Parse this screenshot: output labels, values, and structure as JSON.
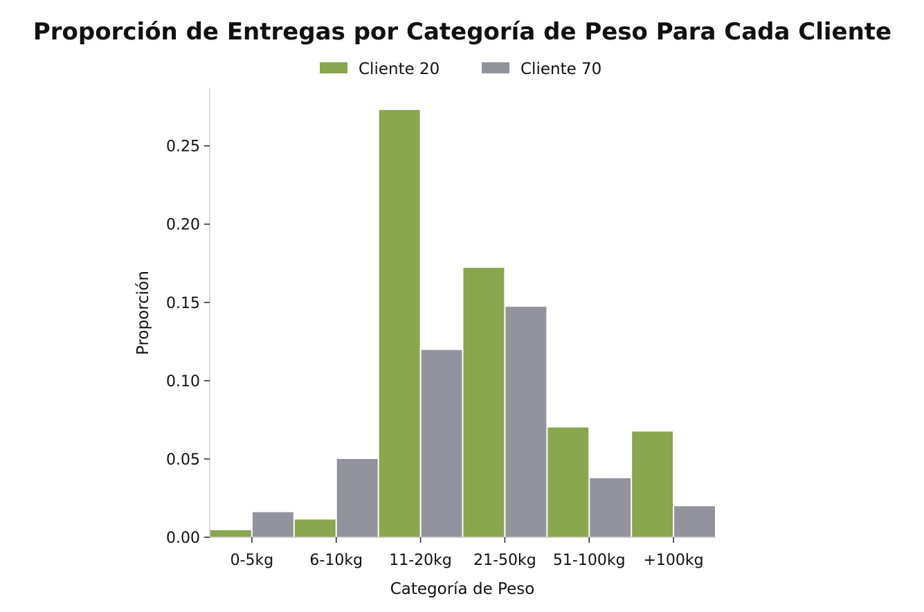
{
  "chart_data": {
    "type": "bar",
    "title": "Proporción de Entregas por Categoría de Peso Para Cada Cliente",
    "xlabel": "Categoría de Peso",
    "ylabel": "Proporción",
    "categories": [
      "0-5kg",
      "6-10kg",
      "11-20kg",
      "21-50kg",
      "51-100kg",
      "+100kg"
    ],
    "series": [
      {
        "name": "Cliente 20",
        "values": [
          0.0045,
          0.0113,
          0.2729,
          0.1721,
          0.0701,
          0.0675
        ]
      },
      {
        "name": "Cliente 70",
        "values": [
          0.016,
          0.05,
          0.1196,
          0.1472,
          0.0377,
          0.0198
        ]
      }
    ],
    "ylim": [
      0,
      0.287
    ],
    "yticks": [
      0.0,
      0.05,
      0.1,
      0.15,
      0.2,
      0.25
    ],
    "ytick_labels": [
      "0.00",
      "0.05",
      "0.10",
      "0.15",
      "0.20",
      "0.25"
    ],
    "legend": "top-center",
    "grid": false,
    "colors": {
      "Cliente 20": "#8aa64e",
      "Cliente 70": "#93939e"
    }
  }
}
